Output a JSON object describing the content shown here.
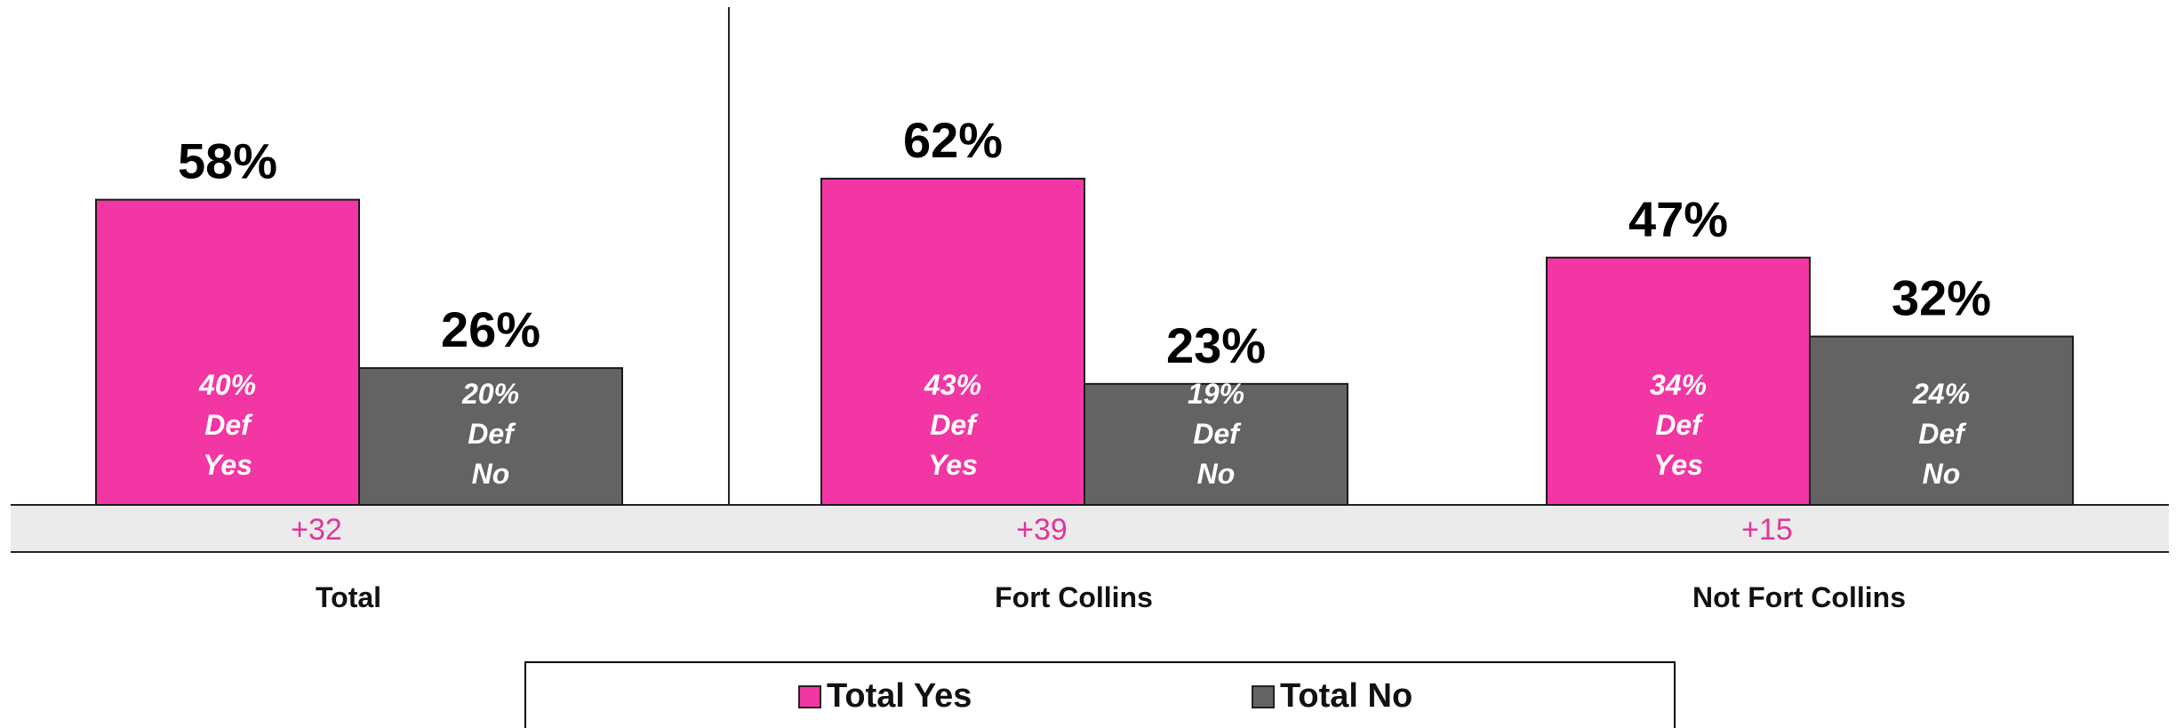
{
  "chart_data": {
    "type": "bar",
    "categories": [
      "Total",
      "Fort Collins",
      "Not Fort Collins"
    ],
    "series": [
      {
        "name": "Total Yes",
        "color": "#f236a4",
        "values": [
          58,
          62,
          47
        ],
        "inner": [
          [
            "40%",
            "Def",
            "Yes"
          ],
          [
            "43%",
            "Def",
            "Yes"
          ],
          [
            "34%",
            "Def",
            "Yes"
          ]
        ]
      },
      {
        "name": "Total No",
        "color": "#636363",
        "values": [
          26,
          23,
          32
        ],
        "inner": [
          [
            "20%",
            "Def",
            "No"
          ],
          [
            "19%",
            "Def",
            "No"
          ],
          [
            "24%",
            "Def",
            "No"
          ]
        ]
      }
    ],
    "value_labels": [
      [
        "58%",
        "62%",
        "47%"
      ],
      [
        "26%",
        "23%",
        "32%"
      ]
    ],
    "margins": [
      "+32",
      "+39",
      "+15"
    ],
    "margin_color": "#e0359a",
    "ylim": [
      0,
      70
    ],
    "legend_position": "bottom",
    "xlabel": "",
    "ylabel": ""
  },
  "legend": {
    "yes_label": "Total Yes",
    "no_label": "Total No"
  }
}
